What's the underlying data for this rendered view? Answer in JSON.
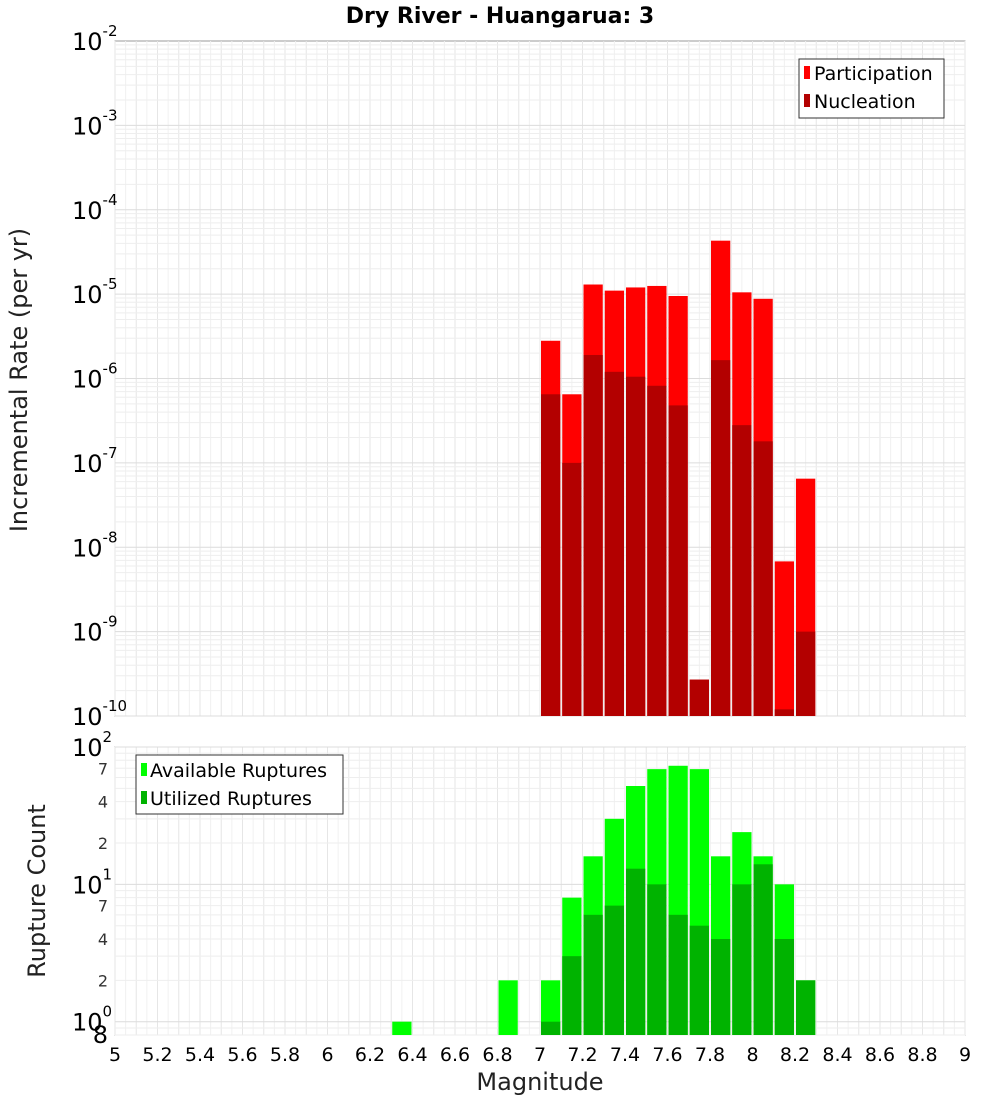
{
  "chart_data": [
    {
      "type": "bar",
      "title": "Dry River - Huangarua: 3",
      "ylabel": "Incremental Rate (per yr)",
      "xlabel": "Magnitude",
      "yscale": "log",
      "ylim": [
        1e-10,
        0.01
      ],
      "xlim": [
        5,
        9
      ],
      "y_tick_labels": [
        {
          "base": "10",
          "exp": "-2"
        },
        {
          "base": "10",
          "exp": "-3"
        },
        {
          "base": "10",
          "exp": "-4"
        },
        {
          "base": "10",
          "exp": "-5"
        },
        {
          "base": "10",
          "exp": "-6"
        },
        {
          "base": "10",
          "exp": "-7"
        },
        {
          "base": "10",
          "exp": "-8"
        },
        {
          "base": "10",
          "exp": "-9"
        },
        {
          "base": "10",
          "exp": "-10"
        }
      ],
      "legend_position": "top-right",
      "grid": true,
      "colors": {
        "Participation": "#ff0000",
        "Nucleation": "#b30000"
      },
      "x": [
        7.05,
        7.15,
        7.25,
        7.35,
        7.45,
        7.55,
        7.65,
        7.75,
        7.85,
        7.95,
        8.05,
        8.15,
        8.25
      ],
      "series": [
        {
          "name": "Participation",
          "values": [
            2.8e-06,
            6.5e-07,
            1.3e-05,
            1.1e-05,
            1.2e-05,
            1.25e-05,
            9.5e-06,
            2.7e-10,
            4.3e-05,
            1.05e-05,
            8.8e-06,
            6.8e-09,
            6.5e-08
          ]
        },
        {
          "name": "Nucleation",
          "values": [
            6.5e-07,
            1e-07,
            1.9e-06,
            1.2e-06,
            1.05e-06,
            8.2e-07,
            4.8e-07,
            2.7e-10,
            1.65e-06,
            2.8e-07,
            1.8e-07,
            1.2e-10,
            1e-09
          ]
        }
      ]
    },
    {
      "type": "bar",
      "ylabel": "Rupture Count",
      "xlabel": "Magnitude",
      "yscale": "log",
      "ylim": [
        0.8,
        100
      ],
      "xlim": [
        5,
        9
      ],
      "x_ticks": [
        "5",
        "5.2",
        "5.4",
        "5.6",
        "5.8",
        "6",
        "6.2",
        "6.4",
        "6.6",
        "6.8",
        "7",
        "7.2",
        "7.4",
        "7.6",
        "7.8",
        "8",
        "8.2",
        "8.4",
        "8.6",
        "8.8",
        "9"
      ],
      "y_major_ticks": [
        {
          "base": "10",
          "exp": "2",
          "value": 100
        },
        {
          "base": "10",
          "exp": "1",
          "value": 10
        },
        {
          "base": "10",
          "exp": "0",
          "value": 1
        }
      ],
      "y_minor_labels": [
        {
          "label": "7",
          "value": 70
        },
        {
          "label": "4",
          "value": 40
        },
        {
          "label": "2",
          "value": 20
        },
        {
          "label": "7",
          "value": 7
        },
        {
          "label": "4",
          "value": 4
        },
        {
          "label": "2",
          "value": 2
        },
        {
          "label": "8",
          "value": 0.8
        }
      ],
      "legend_position": "top-left",
      "grid": true,
      "colors": {
        "Available Ruptures": "#00ff00",
        "Utilized Ruptures": "#00b300"
      },
      "x": [
        6.35,
        6.85,
        7.05,
        7.15,
        7.25,
        7.35,
        7.45,
        7.55,
        7.65,
        7.75,
        7.85,
        7.95,
        8.05,
        8.15,
        8.25
      ],
      "series": [
        {
          "name": "Available Ruptures",
          "values": [
            1,
            2,
            2,
            8,
            16,
            30,
            52,
            69,
            73,
            69,
            16,
            24,
            16,
            10,
            2
          ]
        },
        {
          "name": "Utilized Ruptures",
          "values": [
            0,
            0,
            1,
            3,
            6,
            7,
            13,
            10,
            6,
            5,
            4,
            10,
            14,
            4,
            2
          ]
        }
      ]
    }
  ]
}
